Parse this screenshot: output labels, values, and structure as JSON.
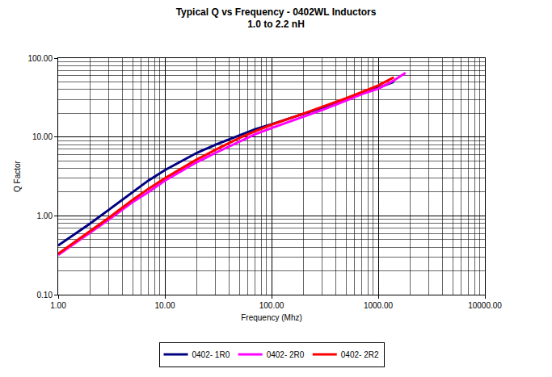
{
  "chart_data": {
    "type": "line",
    "title": "Typical Q vs Frequency - 0402WL Inductors",
    "subtitle": "1.0 to 2.2 nH",
    "x_label": "Frequency (Mhz)",
    "y_label": "Q Factor",
    "log": true,
    "grid": true,
    "legend": "bottom",
    "x": [
      1,
      2,
      3,
      5,
      7,
      10,
      20,
      30,
      50,
      70,
      100,
      200,
      300,
      500,
      700,
      1000,
      1400,
      1800
    ],
    "series": [
      {
        "name": "0402- 1R0",
        "color": "#000080",
        "values": [
          0.42,
          0.8,
          1.2,
          2.0,
          2.8,
          3.8,
          6.3,
          8.0,
          10.5,
          12.5,
          14.5,
          19.5,
          23.5,
          30,
          36,
          42,
          50,
          null
        ]
      },
      {
        "name": "0402- 2R0",
        "color": "#ff00ff",
        "values": [
          0.32,
          0.62,
          0.9,
          1.5,
          2.0,
          2.8,
          4.8,
          6.3,
          8.8,
          10.8,
          13,
          18,
          22,
          29,
          35,
          41,
          52,
          65
        ]
      },
      {
        "name": "0402- 2R2",
        "color": "#ff0000",
        "values": [
          0.33,
          0.65,
          0.95,
          1.6,
          2.2,
          3.0,
          5.2,
          6.9,
          9.7,
          11.8,
          14.3,
          19.8,
          24,
          31,
          37,
          45,
          57,
          null
        ]
      }
    ],
    "xlim": [
      1,
      10000
    ],
    "xticks": [
      {
        "value": 1,
        "label": "1.00"
      },
      {
        "value": 10,
        "label": "10.00"
      },
      {
        "value": 100,
        "label": "100.00"
      },
      {
        "value": 1000,
        "label": "1000.00"
      },
      {
        "value": 10000,
        "label": "10000.00"
      }
    ],
    "ylim": [
      0.1,
      100
    ],
    "yticks": [
      {
        "value": 0.1,
        "label": "0.10"
      },
      {
        "value": 1,
        "label": "1.00"
      },
      {
        "value": 10,
        "label": "10.00"
      },
      {
        "value": 100,
        "label": "100.00"
      }
    ]
  }
}
